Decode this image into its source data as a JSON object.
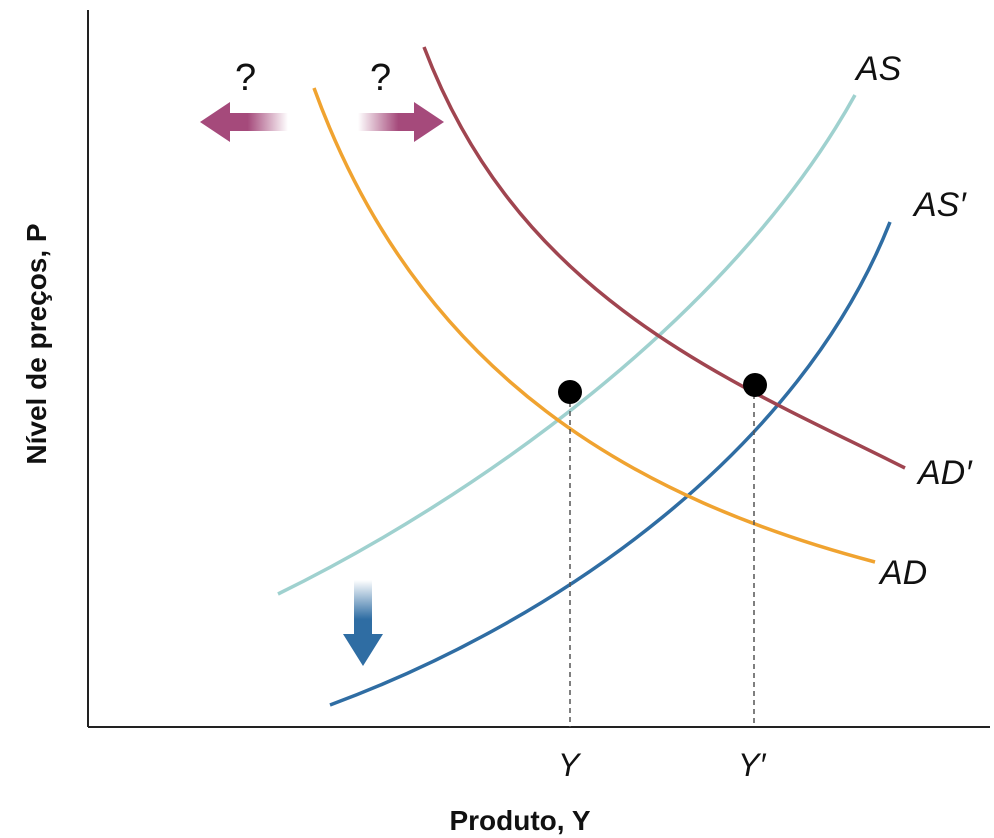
{
  "diagram": {
    "y_axis_title": "Nível de preços, P",
    "x_axis_title": "Produto, Y",
    "curves": [
      {
        "id": "AS",
        "label": "AS",
        "color": "#9fd1cf"
      },
      {
        "id": "AS_prime",
        "label": "AS′",
        "color": "#2f6da3"
      },
      {
        "id": "AD",
        "label": "AD",
        "color": "#f0a330"
      },
      {
        "id": "AD_prime",
        "label": "AD′",
        "color": "#a04550"
      }
    ],
    "x_ticks": [
      "Y",
      "Y′"
    ],
    "shift_arrows": {
      "left": {
        "label": "?",
        "color": "#a54a7b"
      },
      "right": {
        "label": "?",
        "color": "#a54a7b"
      },
      "down": {
        "color": "#2f6da3"
      }
    }
  }
}
